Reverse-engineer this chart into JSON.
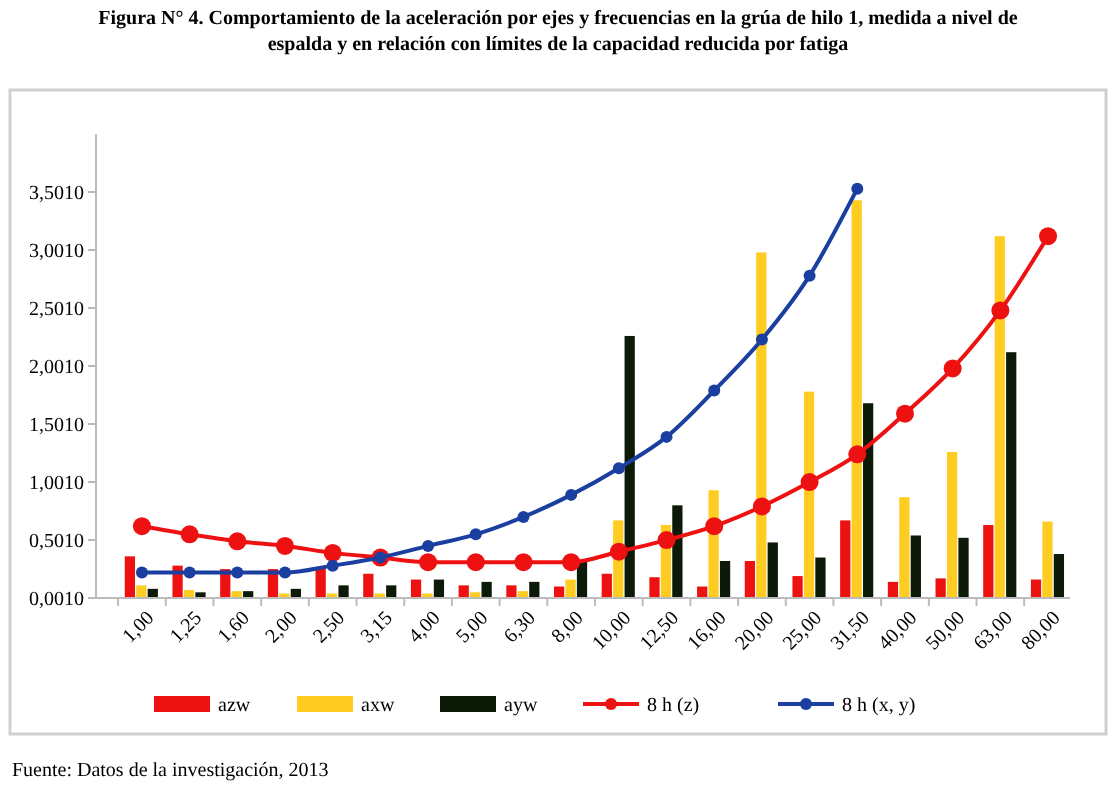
{
  "chart_data": {
    "type": "bar",
    "title": "Figura N° 4. Comportamiento de la aceleración por ejes y frecuencias en la grúa de hilo 1, medida a nivel de espalda y en relación  con límites de la capacidad  reducida por fatiga",
    "categories": [
      "1,00",
      "1,25",
      "1,60",
      "2,00",
      "2,50",
      "3,15",
      "4,00",
      "5,00",
      "6,30",
      "8,00",
      "10,00",
      "12,50",
      "16,00",
      "20,00",
      "25,00",
      "31,50",
      "40,00",
      "50,00",
      "63,00",
      "80,00"
    ],
    "series": [
      {
        "name": "azw",
        "color": "#ee1111",
        "values": [
          0.36,
          0.28,
          0.25,
          0.25,
          0.26,
          0.21,
          0.16,
          0.11,
          0.11,
          0.1,
          0.21,
          0.18,
          0.1,
          0.32,
          0.19,
          0.67,
          0.14,
          0.17,
          0.63,
          0.16
        ]
      },
      {
        "name": "axw",
        "color": "#ffcc22",
        "values": [
          0.11,
          0.07,
          0.06,
          0.04,
          0.04,
          0.04,
          0.04,
          0.05,
          0.06,
          0.16,
          0.67,
          0.63,
          0.93,
          2.98,
          1.78,
          3.43,
          0.87,
          1.26,
          3.12,
          0.66
        ]
      },
      {
        "name": "ayw",
        "color": "#0d1a08",
        "values": [
          0.08,
          0.05,
          0.06,
          0.08,
          0.11,
          0.11,
          0.16,
          0.14,
          0.14,
          0.32,
          2.26,
          0.8,
          0.32,
          0.48,
          0.35,
          1.68,
          0.54,
          0.52,
          2.12,
          0.38
        ]
      },
      {
        "name": "8 h (z)",
        "type": "line",
        "color": "#ee1111",
        "values": [
          0.62,
          0.55,
          0.49,
          0.45,
          0.39,
          0.35,
          0.31,
          0.31,
          0.31,
          0.31,
          0.4,
          0.5,
          0.62,
          0.79,
          1.0,
          1.24,
          1.59,
          1.98,
          2.48,
          3.12
        ]
      },
      {
        "name": "8 h (x, y)",
        "type": "line",
        "color": "#1a3fa0",
        "values": [
          0.22,
          0.22,
          0.22,
          0.22,
          0.28,
          0.35,
          0.45,
          0.55,
          0.7,
          0.89,
          1.12,
          1.39,
          1.79,
          2.23,
          2.78,
          3.53,
          null,
          null,
          null,
          null
        ]
      }
    ],
    "ylim": [
      0.001,
      4.001
    ],
    "yticks": [
      {
        "value": 0.001,
        "label": "0,0010"
      },
      {
        "value": 0.501,
        "label": "0,5010"
      },
      {
        "value": 1.001,
        "label": "1,0010"
      },
      {
        "value": 1.501,
        "label": "1,5010"
      },
      {
        "value": 2.001,
        "label": "2,0010"
      },
      {
        "value": 2.501,
        "label": "2,5010"
      },
      {
        "value": 3.001,
        "label": "3,0010"
      },
      {
        "value": 3.501,
        "label": "3,5010"
      }
    ],
    "grid": false,
    "legend": "bottom",
    "marker": "circle",
    "annotations": [
      "Fuente: Datos de la investigación, 2013"
    ]
  }
}
